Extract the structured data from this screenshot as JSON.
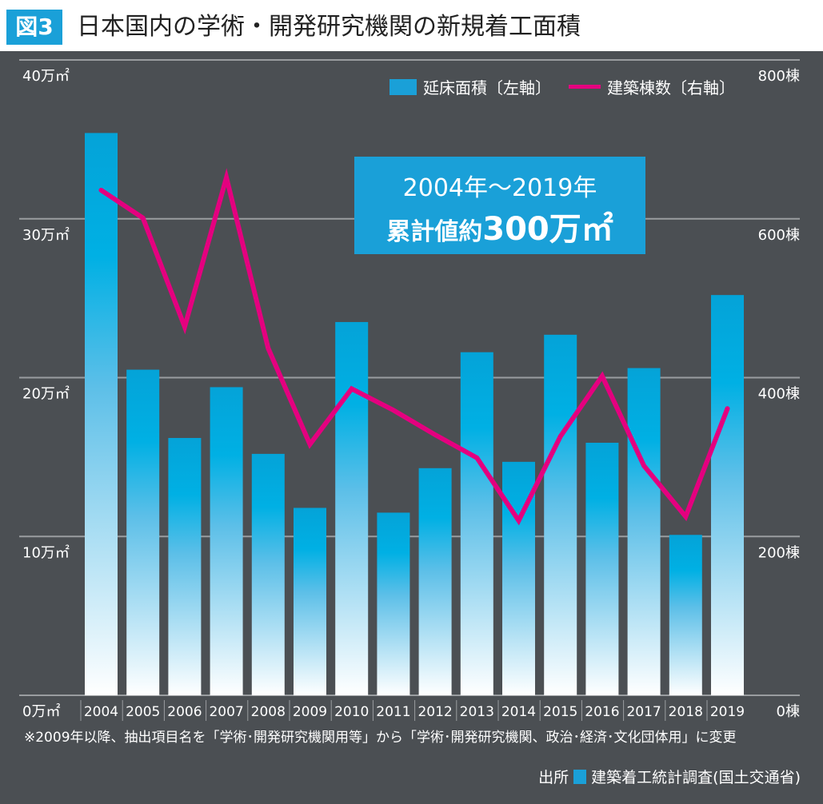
{
  "header": {
    "figure_label": "図3",
    "title": "日本国内の学術・開発研究機関の新規着工面積"
  },
  "callout": {
    "line1": "2004年〜2019年",
    "line2_prefix": "累計値約",
    "line2_value": "300万㎡"
  },
  "footnote": "※2009年以降、抽出項目名を「学術･開発研究機関用等」から「学術･開発研究機関、政治･経済･文化団体用」に変更",
  "source": {
    "label": "出所",
    "text": "建築着工統計調査(国土交通省)"
  },
  "colors": {
    "bar": "#1aa0d8",
    "line": "#e4007f",
    "bg": "#4b4f53"
  },
  "chart_data": {
    "type": "bar+line",
    "title": "日本国内の学術・開発研究機関の新規着工面積",
    "categories": [
      "2004",
      "2005",
      "2006",
      "2007",
      "2008",
      "2009",
      "2010",
      "2011",
      "2012",
      "2013",
      "2014",
      "2015",
      "2016",
      "2017",
      "2018",
      "2019"
    ],
    "series": [
      {
        "name": "延床面積〔左軸〕",
        "type": "bar",
        "axis": "left",
        "unit": "万㎡",
        "values": [
          35.4,
          20.5,
          16.2,
          19.4,
          15.2,
          11.8,
          23.5,
          11.5,
          14.3,
          21.6,
          14.7,
          22.7,
          15.9,
          20.6,
          10.1,
          25.2
        ]
      },
      {
        "name": "建築棟数〔右軸〕",
        "type": "line",
        "axis": "right",
        "unit": "棟",
        "values": [
          636,
          601,
          464,
          652,
          437,
          316,
          386,
          359,
          328,
          299,
          220,
          326,
          402,
          289,
          225,
          361
        ]
      }
    ],
    "left_axis": {
      "ylim": [
        0,
        40
      ],
      "ticks": [
        "0万㎡",
        "10万㎡",
        "20万㎡",
        "30万㎡",
        "40万㎡"
      ]
    },
    "right_axis": {
      "ylim": [
        0,
        800
      ],
      "ticks": [
        "0棟",
        "200棟",
        "400棟",
        "600棟",
        "800棟"
      ]
    },
    "grid": true,
    "legend": "top-right"
  }
}
